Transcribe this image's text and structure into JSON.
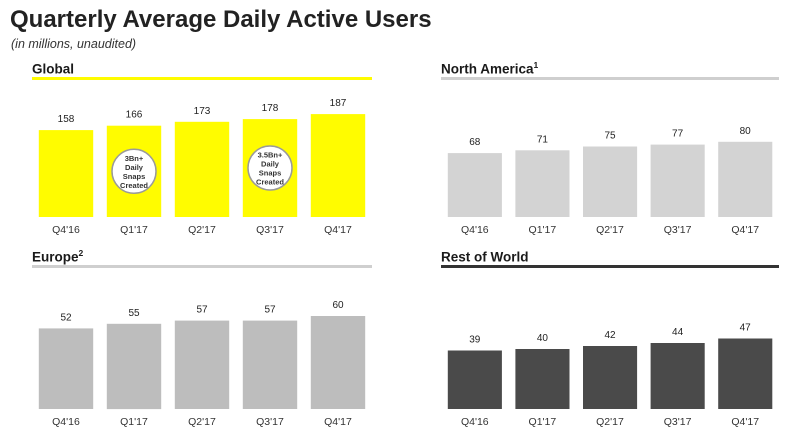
{
  "header": {
    "title": "Quarterly Average Daily Active Users",
    "subtitle": "(in millions, unaudited)"
  },
  "chart_data": [
    {
      "type": "bar",
      "title": "Global",
      "title_superscript": "",
      "categories": [
        "Q4'16",
        "Q1'17",
        "Q2'17",
        "Q3'17",
        "Q4'17"
      ],
      "values": [
        158,
        166,
        173,
        178,
        187
      ],
      "ylim": [
        0,
        200
      ],
      "bar_color": "#FFFC00",
      "rule_color": "#FFFC00",
      "annotations": [
        {
          "category": "Q1'17",
          "lines": [
            "3Bn+",
            "Daily",
            "Snaps",
            "Created"
          ]
        },
        {
          "category": "Q3'17",
          "lines": [
            "3.5Bn+",
            "Daily",
            "Snaps",
            "Created"
          ]
        }
      ]
    },
    {
      "type": "bar",
      "title": "North America",
      "title_superscript": "1",
      "categories": [
        "Q4'16",
        "Q1'17",
        "Q2'17",
        "Q3'17",
        "Q4'17"
      ],
      "values": [
        68,
        71,
        75,
        77,
        80
      ],
      "ylim": [
        0,
        100
      ],
      "bar_color": "#D3D3D3",
      "rule_color": "#CFCFCF",
      "annotations": []
    },
    {
      "type": "bar",
      "title": "Europe",
      "title_superscript": "2",
      "categories": [
        "Q4'16",
        "Q1'17",
        "Q2'17",
        "Q3'17",
        "Q4'17"
      ],
      "values": [
        52,
        55,
        57,
        57,
        60
      ],
      "ylim": [
        0,
        80
      ],
      "bar_color": "#BDBDBD",
      "rule_color": "#CFCFCF",
      "annotations": []
    },
    {
      "type": "bar",
      "title": "Rest of World",
      "title_superscript": "",
      "categories": [
        "Q4'16",
        "Q1'17",
        "Q2'17",
        "Q3'17",
        "Q4'17"
      ],
      "values": [
        39,
        40,
        42,
        44,
        47
      ],
      "ylim": [
        0,
        80
      ],
      "bar_color": "#4A4A4A",
      "rule_color": "#333333",
      "annotations": []
    }
  ]
}
